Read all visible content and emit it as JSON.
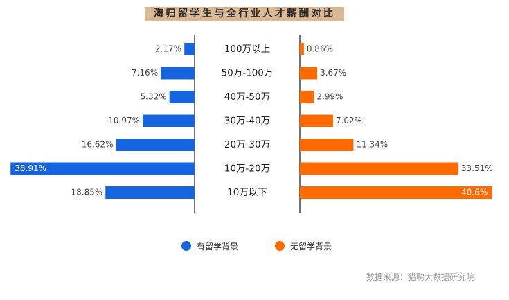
{
  "title": "海归留学生与全行业人才薪酬对比",
  "source": "数据来源：猎聘大数据研究院",
  "colors": {
    "left_series": "#1565e0",
    "right_series": "#ff6a00",
    "axis": "#444444",
    "title_band": "#dcb995"
  },
  "chart_data": {
    "type": "bar",
    "orientation": "horizontal-butterfly",
    "categories": [
      "100万以上",
      "50万-100万",
      "40万-50万",
      "30万-40万",
      "20万-30万",
      "10万-20万",
      "10万以下"
    ],
    "series": [
      {
        "name": "有留学背景",
        "side": "left",
        "values": [
          2.17,
          7.16,
          5.32,
          10.97,
          16.62,
          38.91,
          18.85
        ],
        "labels": [
          "2.17%",
          "7.16%",
          "5.32%",
          "10.97%",
          "16.62%",
          "38.91%",
          "18.85%"
        ]
      },
      {
        "name": "无留学背景",
        "side": "right",
        "values": [
          0.86,
          3.67,
          2.99,
          7.02,
          11.34,
          33.51,
          40.6
        ],
        "labels": [
          "0.86%",
          "3.67%",
          "2.99%",
          "7.02%",
          "11.34%",
          "33.51%",
          "40.6%"
        ]
      }
    ],
    "legend": "bottom-center",
    "grid": false
  }
}
